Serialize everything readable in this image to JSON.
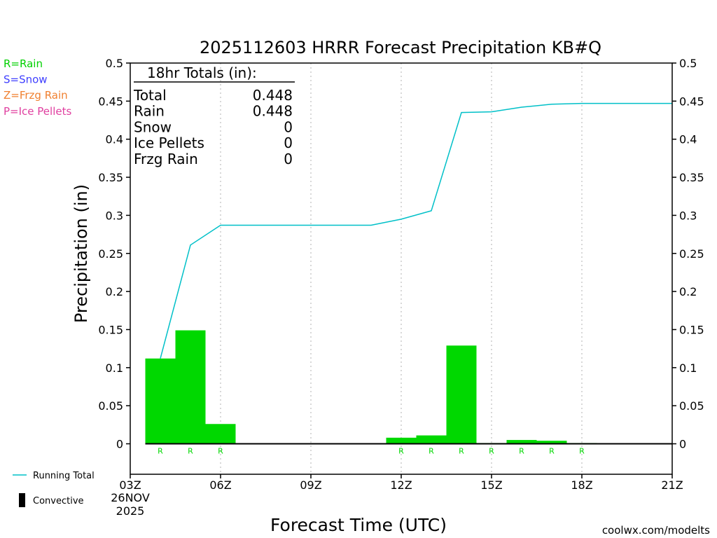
{
  "chart_data": {
    "type": "bar",
    "title": "2025112603 HRRR Forecast Precipitation KB#Q",
    "xlabel": "Forecast Time (UTC)",
    "ylabel": "Precipitation (in)",
    "ylim": [
      -0.04,
      0.5
    ],
    "y_ticks": [
      "0",
      "0.05",
      "0.1",
      "0.15",
      "0.2",
      "0.25",
      "0.3",
      "0.35",
      "0.4",
      "0.45",
      "0.5"
    ],
    "y_tick_values": [
      0,
      0.05,
      0.1,
      0.15,
      0.2,
      0.25,
      0.3,
      0.35,
      0.4,
      0.45,
      0.5
    ],
    "xlim_hours": [
      3,
      21
    ],
    "x_ticks": [
      {
        "hour": 3,
        "label": "03Z"
      },
      {
        "hour": 6,
        "label": "06Z"
      },
      {
        "hour": 9,
        "label": "09Z"
      },
      {
        "hour": 12,
        "label": "12Z"
      },
      {
        "hour": 15,
        "label": "15Z"
      },
      {
        "hour": 18,
        "label": "18Z"
      },
      {
        "hour": 21,
        "label": "21Z"
      }
    ],
    "start_date_line1": "26NOV",
    "start_date_line2": "2025",
    "grid_hours": [
      6,
      9,
      12,
      15,
      18
    ],
    "bars": [
      {
        "start": 3.5,
        "end": 4.5,
        "value": 0.112,
        "type": "R"
      },
      {
        "start": 4.5,
        "end": 5.5,
        "value": 0.149,
        "type": "R"
      },
      {
        "start": 5.5,
        "end": 6.5,
        "value": 0.026,
        "type": "R"
      },
      {
        "start": 11.5,
        "end": 12.5,
        "value": 0.008,
        "type": "R"
      },
      {
        "start": 12.5,
        "end": 13.5,
        "value": 0.011,
        "type": "R"
      },
      {
        "start": 13.5,
        "end": 14.5,
        "value": 0.129,
        "type": "R"
      },
      {
        "start": 14.5,
        "end": 15.5,
        "value": 0.001,
        "type": "R"
      },
      {
        "start": 15.5,
        "end": 16.5,
        "value": 0.005,
        "type": "R"
      },
      {
        "start": 16.5,
        "end": 17.5,
        "value": 0.004,
        "type": "R"
      },
      {
        "start": 17.5,
        "end": 18.5,
        "value": 0.001,
        "type": "R"
      }
    ],
    "baseline_hours": [
      3.5,
      21
    ],
    "running_total": {
      "name": "Running Total",
      "x": [
        4,
        5,
        6,
        7,
        8,
        9,
        10,
        11,
        12,
        13,
        14,
        15,
        16,
        17,
        18,
        19,
        20,
        21
      ],
      "values": [
        0.112,
        0.261,
        0.287,
        0.287,
        0.287,
        0.287,
        0.287,
        0.287,
        0.295,
        0.306,
        0.435,
        0.436,
        0.442,
        0.446,
        0.447,
        0.447,
        0.447,
        0.447
      ]
    },
    "precip_legend": [
      {
        "label": "R=Rain",
        "color": "#00d000"
      },
      {
        "label": "S=Snow",
        "color": "#4040ff"
      },
      {
        "label": "Z=Frzg Rain",
        "color": "#f08030"
      },
      {
        "label": "P=Ice Pellets",
        "color": "#e040a0"
      }
    ],
    "series_legend": [
      {
        "label": "Running Total",
        "color": "#00c0c8",
        "kind": "line"
      },
      {
        "label": "Convective",
        "color": "#000000",
        "kind": "bar"
      }
    ],
    "totals_box": {
      "header": "18hr Totals (in):",
      "rows": [
        {
          "label": "Total",
          "value": "0.448"
        },
        {
          "label": "Rain",
          "value": "0.448"
        },
        {
          "label": "Snow",
          "value": "0"
        },
        {
          "label": "Ice Pellets",
          "value": "0"
        },
        {
          "label": "Frzg Rain",
          "value": "0"
        }
      ]
    },
    "colors": {
      "rain": "#00d800",
      "running_total": "#00c0c8",
      "grid": "#b0b0b0",
      "credit": "#d02030"
    },
    "credit": "coolwx.com/modelts"
  }
}
